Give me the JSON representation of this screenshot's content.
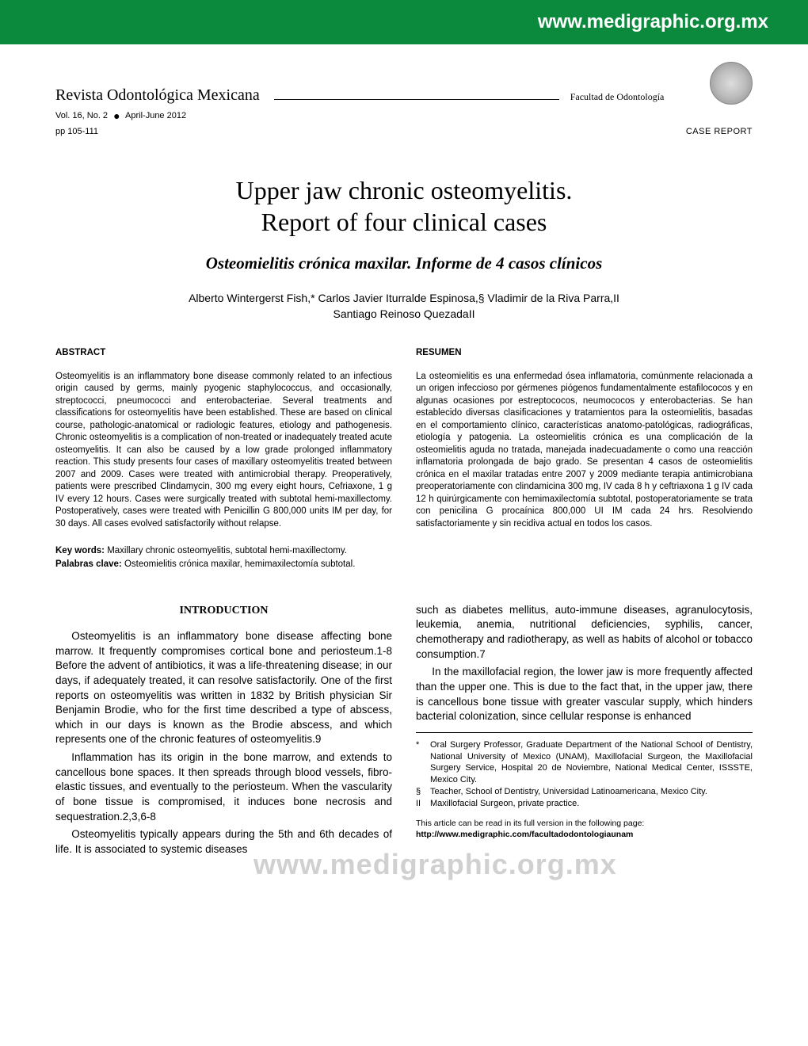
{
  "banner": {
    "url": "www.medigraphic.org.mx"
  },
  "header": {
    "journal": "Revista Odontológica Mexicana",
    "faculty": "Facultad de Odontología",
    "volume": "Vol. 16, No. 2",
    "period": "April-June 2012",
    "pages": "pp 105-111",
    "type": "CASE REPORT"
  },
  "title": {
    "line1": "Upper jaw chronic osteomyelitis.",
    "line2": "Report of four clinical cases",
    "subtitle": "Osteomielitis crónica maxilar. Informe de 4 casos clínicos",
    "authors_line1": "Alberto Wintergerst Fish,* Carlos Javier Iturralde Espinosa,§ Vladimir de la Riva Parra,II",
    "authors_line2": "Santiago Reinoso QuezadaII"
  },
  "abstract": {
    "left_head": "ABSTRACT",
    "right_head": "RESUMEN",
    "left": "Osteomyelitis is an inflammatory bone disease commonly related to an infectious origin caused by germs, mainly pyogenic staphylococcus, and occasionally, streptococci, pneumococci and enterobacteriae. Several treatments and classifications for osteomyelitis have been established. These are based on clinical course, pathologic-anatomical or radiologic features, etiology and pathogenesis. Chronic osteomyelitis is a complication of non-treated or inadequately treated acute osteomyelitis. It can also be caused by a low grade prolonged inflammatory reaction. This study presents four cases of maxillary osteomyelitis treated between 2007 and 2009. Cases were treated with antimicrobial therapy. Preoperatively, patients were prescribed Clindamycin, 300 mg every eight hours, Cefriaxone, 1 g IV every 12 hours. Cases were surgically treated with subtotal hemi-maxillectomy. Postoperatively, cases were treated with Penicillin G 800,000 units IM per day, for 30 days. All cases evolved satisfactorily without relapse.",
    "right": "La osteomielitis es una enfermedad ósea inflamatoria, comúnmente relacionada a un origen infeccioso por gérmenes piógenos fundamentalmente estafilococos y en algunas ocasiones por estreptococos, neumococos y enterobacterias. Se han establecido diversas clasificaciones y tratamientos para la osteomielitis, basadas en el comportamiento clínico, características anatomo-patológicas, radiográficas, etiología y patogenia. La osteomielitis crónica es una complicación de la osteomielitis aguda no tratada, manejada inadecuadamente o como una reacción inflamatoria prolongada de bajo grado. Se presentan 4 casos de osteomielitis crónica en el maxilar tratadas entre 2007 y 2009 mediante terapia antimicrobiana preoperatoriamente con clindamicina 300 mg, IV cada 8 h y ceftriaxona 1 g IV cada 12 h quirúrgicamente con hemimaxilectomía subtotal, postoperatoriamente se trata con penicilina G procaínica 800,000 UI IM cada 24 hrs. Resolviendo satisfactoriamente y sin recidiva actual en todos los casos."
  },
  "keywords": {
    "en_label": "Key words:",
    "en": " Maxillary chronic osteomyelitis, subtotal hemi-maxillectomy.",
    "es_label": "Palabras clave:",
    "es": " Osteomielitis crónica maxilar, hemimaxilectomía subtotal."
  },
  "body": {
    "intro_head": "INTRODUCTION",
    "p1": "Osteomyelitis is an inflammatory bone disease affecting bone marrow. It frequently compromises cortical bone and periosteum.1-8 Before the advent of antibiotics, it was a life-threatening disease; in our days, if adequately treated, it can resolve satisfactorily. One of the first reports on osteomyelitis was written in 1832 by British physician Sir Benjamin Brodie, who for the first time described a type of abscess, which in our days is known as the Brodie abscess, and which represents one of the chronic features of osteomyelitis.9",
    "p2": "Inflammation has its origin in the bone marrow, and extends to cancellous bone spaces. It then spreads through blood vessels, fibro-elastic tissues, and eventually to the periosteum. When the vascularity of bone tissue is compromised, it induces bone necrosis and sequestration.2,3,6-8",
    "p3": "Osteomyelitis typically appears during the 5th and 6th decades of life. It is associated to systemic diseases",
    "p4": "such as diabetes mellitus, auto-immune diseases, agranulocytosis, leukemia, anemia, nutritional deficiencies, syphilis, cancer, chemotherapy and radiotherapy, as well as habits of alcohol or tobacco consumption.7",
    "p5": "In the maxillofacial region, the lower jaw is more frequently affected than the upper one. This is due to the fact that, in the upper jaw, there is cancellous bone tissue with greater vascular supply, which hinders bacterial colonization, since cellular response is enhanced"
  },
  "footnotes": {
    "f1_sym": "*",
    "f1": "Oral Surgery Professor, Graduate Department of the National School of Dentistry, National University of Mexico (UNAM), Maxillofacial Surgeon, the Maxillofacial Surgery Service, Hospital 20 de Noviembre, National Medical Center, ISSSTE, Mexico City.",
    "f2_sym": "§",
    "f2": "Teacher, School of Dentistry, Universidad Latinoamericana, Mexico City.",
    "f3_sym": "II",
    "f3": "Maxillofacial Surgeon, private practice.",
    "link_intro": "This article can be read in its full version in the following page:",
    "link": "http://www.medigraphic.com/facultadodontologiaunam"
  },
  "watermark": "www.medigraphic.org.mx",
  "colors": {
    "banner_bg": "#0b8a3e",
    "banner_text": "#ffffff",
    "text": "#000000",
    "watermark": "#d0d0d0"
  },
  "typography": {
    "title_fontsize": 32,
    "subtitle_fontsize": 21,
    "body_fontsize": 13.5,
    "abstract_fontsize": 11.5,
    "footnote_fontsize": 11,
    "banner_fontsize": 24,
    "title_family": "Times New Roman",
    "body_family": "Arial"
  }
}
